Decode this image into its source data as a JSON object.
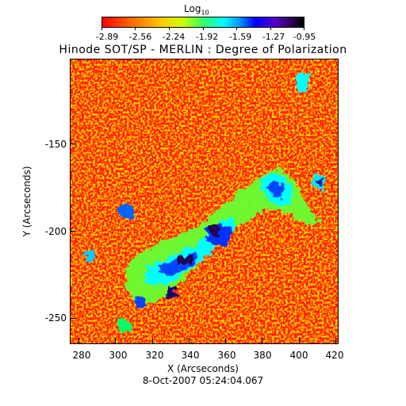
{
  "colorbar": {
    "label": "Log",
    "label_sub": "10",
    "ticks": [
      "-2.89",
      "-2.56",
      "-2.24",
      "-1.92",
      "-1.59",
      "-1.27",
      "-0.95"
    ]
  },
  "title": "Hinode SOT/SP - MERLIN : Degree of Polarization",
  "x_axis": {
    "label": "X (Arcseconds)",
    "ticks": [
      "280",
      "300",
      "320",
      "340",
      "360",
      "380",
      "400",
      "420"
    ]
  },
  "y_axis": {
    "label": "Y (Arcseconds)",
    "ticks": [
      "-150",
      "-200",
      "-250"
    ]
  },
  "timestamp": "8-Oct-2007 05:24:04.067",
  "colors": {
    "background": "#ff0000",
    "noise": "#ffcc00",
    "weak": "#33ff66",
    "medium": "#0066ff",
    "strong": "#1a006e"
  }
}
